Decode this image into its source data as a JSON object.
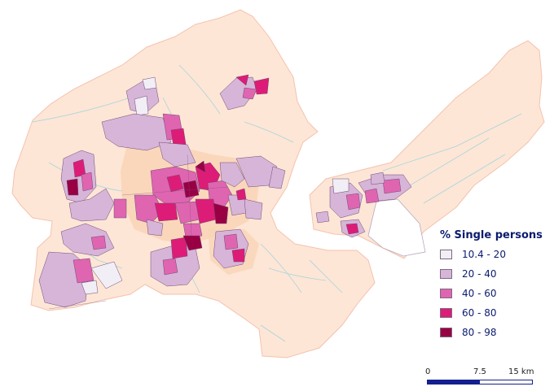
{
  "legend": {
    "title": "% Single persons",
    "classes": [
      {
        "label": "10.4 - 20",
        "color": "#f1eef6"
      },
      {
        "label": "20 - 40",
        "color": "#d7b5d8"
      },
      {
        "label": "40 - 60",
        "color": "#df65b0"
      },
      {
        "label": "60 - 80",
        "color": "#dd1c77"
      },
      {
        "label": "80 - 98",
        "color": "#980043"
      }
    ]
  },
  "scalebar": {
    "labels": [
      "0",
      "7.5",
      "15 km"
    ]
  },
  "colors": {
    "municipality_fill": "#fde6d6",
    "municipality_border": "#f4c2ae",
    "built_area": "#f9d4b6",
    "water": "#a8d4dc",
    "district_border": "#6f4a74"
  }
}
